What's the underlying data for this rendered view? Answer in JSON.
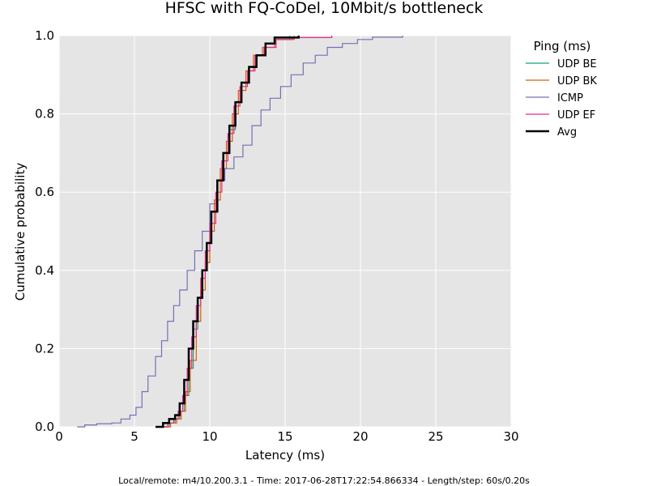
{
  "footer": "Local/remote: m4/10.200.3.1 - Time: 2017-06-28T17:22:54.866334 - Length/step: 60s/0.20s",
  "chart_data": {
    "type": "line",
    "title": "HFSC with FQ-CoDel, 10Mbit/s bottleneck",
    "xlabel": "Latency (ms)",
    "ylabel": "Cumulative probability",
    "xlim": [
      0,
      30
    ],
    "ylim": [
      0,
      1
    ],
    "xticks": [
      "0",
      "5",
      "10",
      "15",
      "20",
      "25",
      "30"
    ],
    "yticks": [
      "0.0",
      "0.2",
      "0.4",
      "0.6",
      "0.8",
      "1.0"
    ],
    "grid": true,
    "background": "#e5e5e5",
    "legend": {
      "title": "Ping (ms)",
      "placement": "outside-right"
    },
    "series": [
      {
        "name": "UDP BE",
        "color": "#1b9e77",
        "width": 1.2,
        "points": [
          [
            6.9,
            0
          ],
          [
            7.3,
            0.01
          ],
          [
            7.7,
            0.02
          ],
          [
            8.0,
            0.04
          ],
          [
            8.3,
            0.08
          ],
          [
            8.6,
            0.15
          ],
          [
            8.9,
            0.25
          ],
          [
            9.2,
            0.33
          ],
          [
            9.5,
            0.4
          ],
          [
            9.8,
            0.47
          ],
          [
            10.1,
            0.55
          ],
          [
            10.5,
            0.63
          ],
          [
            10.9,
            0.7
          ],
          [
            11.3,
            0.76
          ],
          [
            11.7,
            0.83
          ],
          [
            12.1,
            0.88
          ],
          [
            12.6,
            0.92
          ],
          [
            13.1,
            0.95
          ],
          [
            13.7,
            0.98
          ],
          [
            14.4,
            0.99
          ],
          [
            15.3,
            1.0
          ]
        ]
      },
      {
        "name": "UDP BK",
        "color": "#d95f02",
        "width": 1.2,
        "points": [
          [
            7.0,
            0
          ],
          [
            7.4,
            0.01
          ],
          [
            7.8,
            0.02
          ],
          [
            8.1,
            0.04
          ],
          [
            8.4,
            0.09
          ],
          [
            8.7,
            0.17
          ],
          [
            9.1,
            0.27
          ],
          [
            9.4,
            0.35
          ],
          [
            9.7,
            0.42
          ],
          [
            10.0,
            0.5
          ],
          [
            10.3,
            0.58
          ],
          [
            10.7,
            0.66
          ],
          [
            11.1,
            0.73
          ],
          [
            11.5,
            0.8
          ],
          [
            11.9,
            0.86
          ],
          [
            12.4,
            0.91
          ],
          [
            12.9,
            0.95
          ],
          [
            13.5,
            0.97
          ],
          [
            14.3,
            0.99
          ],
          [
            15.6,
            1.0
          ]
        ]
      },
      {
        "name": "ICMP",
        "color": "#7570b3",
        "width": 1.2,
        "points": [
          [
            1.2,
            0
          ],
          [
            1.7,
            0.005
          ],
          [
            2.5,
            0.008
          ],
          [
            3.5,
            0.01
          ],
          [
            4.1,
            0.02
          ],
          [
            4.7,
            0.03
          ],
          [
            5.1,
            0.05
          ],
          [
            5.5,
            0.09
          ],
          [
            5.9,
            0.13
          ],
          [
            6.4,
            0.18
          ],
          [
            6.8,
            0.22
          ],
          [
            7.2,
            0.27
          ],
          [
            7.6,
            0.31
          ],
          [
            8.0,
            0.35
          ],
          [
            8.5,
            0.4
          ],
          [
            9.0,
            0.45
          ],
          [
            9.5,
            0.5
          ],
          [
            10.0,
            0.57
          ],
          [
            10.5,
            0.63
          ],
          [
            11.0,
            0.66
          ],
          [
            11.6,
            0.69
          ],
          [
            12.2,
            0.72
          ],
          [
            12.8,
            0.77
          ],
          [
            13.4,
            0.81
          ],
          [
            14.0,
            0.84
          ],
          [
            14.7,
            0.87
          ],
          [
            15.4,
            0.9
          ],
          [
            16.2,
            0.93
          ],
          [
            17.0,
            0.95
          ],
          [
            17.8,
            0.97
          ],
          [
            18.8,
            0.98
          ],
          [
            19.8,
            0.99
          ],
          [
            20.8,
            0.996
          ],
          [
            22.8,
            1.0
          ]
        ]
      },
      {
        "name": "UDP EF",
        "color": "#e7298a",
        "width": 1.2,
        "points": [
          [
            6.8,
            0
          ],
          [
            7.2,
            0.01
          ],
          [
            7.6,
            0.02
          ],
          [
            7.9,
            0.04
          ],
          [
            8.2,
            0.08
          ],
          [
            8.5,
            0.15
          ],
          [
            8.8,
            0.23
          ],
          [
            9.1,
            0.31
          ],
          [
            9.4,
            0.38
          ],
          [
            9.7,
            0.45
          ],
          [
            10.0,
            0.52
          ],
          [
            10.4,
            0.6
          ],
          [
            10.8,
            0.68
          ],
          [
            11.2,
            0.75
          ],
          [
            11.6,
            0.82
          ],
          [
            12.0,
            0.87
          ],
          [
            12.5,
            0.91
          ],
          [
            13.0,
            0.95
          ],
          [
            13.6,
            0.97
          ],
          [
            14.4,
            0.99
          ],
          [
            15.5,
            0.995
          ],
          [
            18.1,
            1.0
          ]
        ]
      },
      {
        "name": "Avg",
        "color": "#000000",
        "width": 2.5,
        "points": [
          [
            6.4,
            0
          ],
          [
            6.9,
            0.01
          ],
          [
            7.3,
            0.02
          ],
          [
            7.7,
            0.03
          ],
          [
            8.0,
            0.06
          ],
          [
            8.3,
            0.12
          ],
          [
            8.6,
            0.2
          ],
          [
            8.9,
            0.27
          ],
          [
            9.2,
            0.33
          ],
          [
            9.5,
            0.4
          ],
          [
            9.8,
            0.47
          ],
          [
            10.1,
            0.55
          ],
          [
            10.5,
            0.63
          ],
          [
            10.9,
            0.7
          ],
          [
            11.3,
            0.77
          ],
          [
            11.7,
            0.83
          ],
          [
            12.1,
            0.88
          ],
          [
            12.6,
            0.92
          ],
          [
            13.1,
            0.95
          ],
          [
            13.7,
            0.98
          ],
          [
            14.3,
            0.995
          ],
          [
            15.9,
            1.0
          ]
        ]
      }
    ]
  }
}
